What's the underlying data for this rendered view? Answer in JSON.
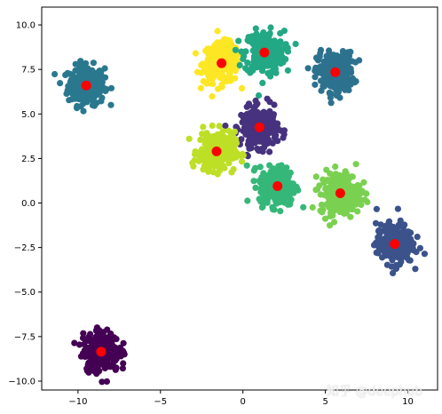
{
  "watermark": "知乎 @deephub",
  "chart_data": {
    "type": "scatter",
    "title": "",
    "xlabel": "",
    "ylabel": "",
    "xlim": [
      -12.2,
      11.8
    ],
    "ylim": [
      -10.5,
      11
    ],
    "xticks": [
      -10,
      -5,
      0,
      5,
      10
    ],
    "yticks": [
      -10.0,
      -7.5,
      -5.0,
      -2.5,
      0.0,
      2.5,
      5.0,
      7.5,
      10.0
    ],
    "xtick_labels": [
      "−10",
      "−5",
      "0",
      "5",
      "10"
    ],
    "ytick_labels": [
      "−10.0",
      "−7.5",
      "−5.0",
      "−2.5",
      "0.0",
      "2.5",
      "5.0",
      "7.5",
      "10.0"
    ],
    "grid": false,
    "clusters": [
      {
        "center": [
          -9.5,
          6.6
        ],
        "color": "#2a788e",
        "spread": 0.55
      },
      {
        "center": [
          -1.3,
          7.85
        ],
        "color": "#fde725",
        "spread": 0.55
      },
      {
        "center": [
          1.3,
          8.45
        ],
        "color": "#22a884",
        "spread": 0.6
      },
      {
        "center": [
          5.6,
          7.35
        ],
        "color": "#2c728e",
        "spread": 0.55
      },
      {
        "center": [
          1.0,
          4.25
        ],
        "color": "#46327e",
        "spread": 0.55
      },
      {
        "center": [
          -1.6,
          2.9
        ],
        "color": "#bddf26",
        "spread": 0.55
      },
      {
        "center": [
          2.1,
          0.95
        ],
        "color": "#35b779",
        "spread": 0.55
      },
      {
        "center": [
          5.9,
          0.55
        ],
        "color": "#7ad151",
        "spread": 0.6
      },
      {
        "center": [
          9.2,
          -2.3
        ],
        "color": "#3b528b",
        "spread": 0.55
      },
      {
        "center": [
          -8.6,
          -8.35
        ],
        "color": "#440154",
        "spread": 0.55
      }
    ],
    "centroid_color": "#ff0000"
  }
}
